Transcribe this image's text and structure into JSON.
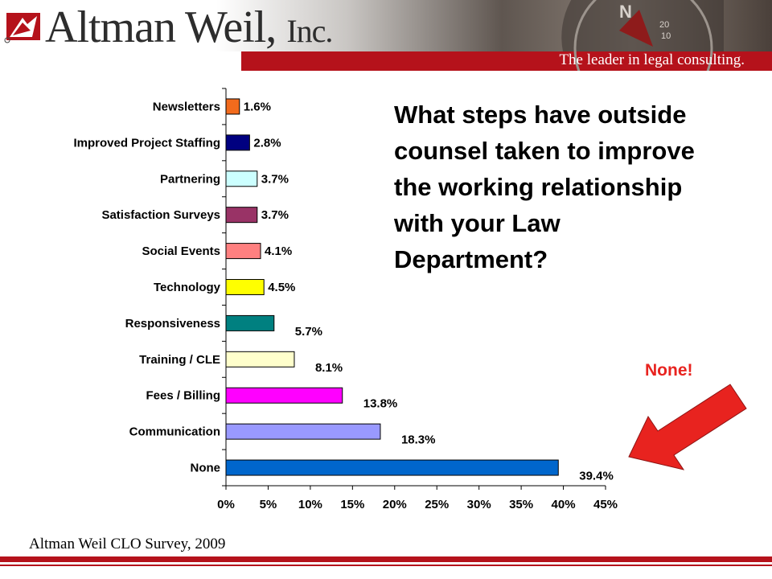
{
  "header": {
    "company": "Altman Weil,",
    "company_suffix": "Inc.",
    "tagline": "The leader in legal consulting.",
    "compass_letter": "N",
    "compass_ticks": [
      "20",
      "10"
    ]
  },
  "question": "What steps have outside counsel taken to improve the working relationship with your Law Department?",
  "callout": "None!",
  "source": "Altman Weil CLO Survey, 2009",
  "colors": {
    "brand_red": "#b5121b",
    "callout_red": "#e8231f"
  },
  "chart_data": {
    "type": "bar",
    "orientation": "horizontal",
    "title": "",
    "xlabel": "",
    "ylabel": "",
    "xlim": [
      0,
      45
    ],
    "x_ticks": [
      "0%",
      "5%",
      "10%",
      "15%",
      "20%",
      "25%",
      "30%",
      "35%",
      "40%",
      "45%"
    ],
    "grid": false,
    "legend": "none",
    "categories": [
      "Newsletters",
      "Improved Project Staffing",
      "Partnering",
      "Satisfaction Surveys",
      "Social Events",
      "Technology",
      "Responsiveness",
      "Training / CLE",
      "Fees / Billing",
      "Communication",
      "None"
    ],
    "values": [
      1.6,
      2.8,
      3.7,
      3.7,
      4.1,
      4.5,
      5.7,
      8.1,
      13.8,
      18.3,
      39.4
    ],
    "labels": [
      "1.6%",
      "2.8%",
      "3.7%",
      "3.7%",
      "4.1%",
      "4.5%",
      "5.7%",
      "8.1%",
      "13.8%",
      "18.3%",
      "39.4%"
    ],
    "bar_colors": [
      "#f26b1d",
      "#000080",
      "#ccffff",
      "#993366",
      "#ff8080",
      "#ffff00",
      "#008080",
      "#ffffcc",
      "#ff00ff",
      "#9999ff",
      "#0066cc"
    ]
  }
}
